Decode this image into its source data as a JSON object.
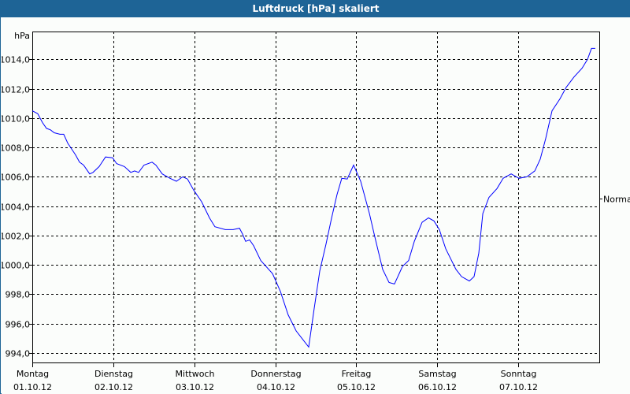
{
  "chart_data": {
    "type": "line",
    "title": "Luftdruck [hPa] skaliert",
    "ylabel": "hPa",
    "xlabel": "",
    "xlim": [
      0,
      168
    ],
    "ylim": [
      993.35,
      1015.9
    ],
    "grid": true,
    "x_unit": "hours since Montag 01.10.12 00:00",
    "y_ticks": [
      994,
      996,
      998,
      1000,
      1002,
      1004,
      1006,
      1008,
      1010,
      1012,
      1014
    ],
    "y_tick_labels": [
      "994,0",
      "996,0",
      "998,0",
      "1000,0",
      "1002,0",
      "1004,0",
      "1006,0",
      "1008,0",
      "1010,0",
      "1012,0",
      "1014,0"
    ],
    "x_ticks": [
      {
        "hour": 0,
        "day": "Montag",
        "date": "01.10.12"
      },
      {
        "hour": 24,
        "day": "Dienstag",
        "date": "02.10.12"
      },
      {
        "hour": 48,
        "day": "Mittwoch",
        "date": "03.10.12"
      },
      {
        "hour": 72,
        "day": "Donnerstag",
        "date": "04.10.12"
      },
      {
        "hour": 96,
        "day": "Freitag",
        "date": "05.10.12"
      },
      {
        "hour": 120,
        "day": "Samstag",
        "date": "06.10.12"
      },
      {
        "hour": 144,
        "day": "Sonntag",
        "date": "07.10.12"
      }
    ],
    "annotations": [
      {
        "label": "Normal",
        "value": 1004.5,
        "side": "right"
      }
    ],
    "series": [
      {
        "name": "Luftdruck",
        "color": "#0000ff",
        "x": [
          0,
          1.6,
          3,
          4.2,
          5.4,
          6.5,
          8.2,
          9.3,
          10.5,
          12.8,
          14,
          15.2,
          17,
          18,
          19.8,
          21.7,
          23.8,
          25,
          27.3,
          29.2,
          30.3,
          31.5,
          33.1,
          35.5,
          36.6,
          38.5,
          40.8,
          42.7,
          44.6,
          46,
          47.8,
          50.2,
          52.5,
          54.1,
          57.2,
          59.5,
          61.4,
          62.3,
          63.2,
          64.4,
          65.6,
          67.7,
          71.2,
          73.5,
          75.8,
          78.2,
          81.9,
          83.5,
          85.2,
          87,
          88.7,
          90.3,
          91.7,
          93.3,
          95.2,
          97.3,
          99.9,
          101.5,
          103.8,
          105.7,
          107.3,
          109.7,
          111.5,
          113.2,
          115.5,
          117.4,
          119,
          120.6,
          122.5,
          125.5,
          127.2,
          129.5,
          130.9,
          132.3,
          133.5,
          135.3,
          137.7,
          139.5,
          141.9,
          144.2,
          146.5,
          148.9,
          150.5,
          152.1,
          154,
          156.3,
          158.2,
          160.5,
          162.9,
          164.5,
          165.7,
          166.8
        ],
        "values": [
          1010.5,
          1010.3,
          1009.7,
          1009.3,
          1009.2,
          1009.0,
          1008.9,
          1008.9,
          1008.3,
          1007.5,
          1007.0,
          1006.8,
          1006.2,
          1006.3,
          1006.7,
          1007.35,
          1007.3,
          1006.9,
          1006.7,
          1006.3,
          1006.4,
          1006.3,
          1006.8,
          1007.0,
          1006.8,
          1006.2,
          1005.9,
          1005.7,
          1006.0,
          1005.85,
          1005.1,
          1004.3,
          1003.2,
          1002.6,
          1002.4,
          1002.4,
          1002.5,
          1002.1,
          1001.6,
          1001.7,
          1001.3,
          1000.3,
          999.4,
          998.2,
          996.6,
          995.5,
          994.4,
          997.0,
          999.6,
          1001.4,
          1003.2,
          1004.8,
          1005.9,
          1005.85,
          1006.8,
          1005.7,
          1003.5,
          1001.9,
          999.7,
          998.8,
          998.7,
          999.9,
          1000.3,
          1001.6,
          1002.9,
          1003.2,
          1003.0,
          1002.4,
          1001.1,
          999.7,
          999.2,
          998.9,
          999.2,
          1000.8,
          1003.5,
          1004.6,
          1005.2,
          1005.9,
          1006.2,
          1005.9,
          1006.0,
          1006.4,
          1007.2,
          1008.6,
          1010.5,
          1011.3,
          1012.1,
          1012.8,
          1013.4,
          1014.0,
          1014.75,
          1014.75
        ]
      }
    ]
  }
}
